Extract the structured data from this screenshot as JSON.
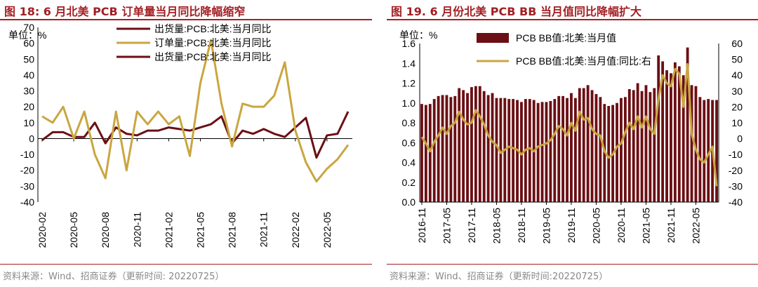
{
  "charts": [
    {
      "title": "图 18:  6 月北美 PCB 订单量当月同比降幅缩窄",
      "source": "资料来源：Wind、招商证券（更新时间: 20220725）",
      "unit_label": "单位：%",
      "colors": {
        "title": "#a31f24",
        "series_shipments": "#6b0f14",
        "series_orders": "#c9a640"
      }
    },
    {
      "title": "图 19. 6 月份北美 PCB BB 当月值同比降幅扩大",
      "source": "资料来源：Wind、招商证券（更新时间:20220725）",
      "unit_label": "单位：%",
      "colors": {
        "title": "#a31f24",
        "bars": "#6b0f14",
        "line": "#c9a640"
      }
    }
  ],
  "chart_data": [
    {
      "type": "line",
      "title": "6 月北美 PCB 订单量当月同比降幅缩窄",
      "ylabel": "%",
      "ylim": [
        -40,
        70
      ],
      "yticks": [
        -40,
        -30,
        -20,
        -10,
        0,
        10,
        20,
        30,
        40,
        50,
        60,
        70
      ],
      "xticks": [
        "2020-02",
        "2020-05",
        "2020-08",
        "2020-11",
        "2021-02",
        "2021-05",
        "2021-08",
        "2021-11",
        "2022-02",
        "2022-05"
      ],
      "legend": [
        "出货量:PCB:北美:当月同比",
        "订单量:PCB:北美:当月同比",
        "出货量:PCB:北美:当月同比"
      ],
      "series": [
        {
          "name": "出货量:PCB:北美:当月同比",
          "color": "#6b0f14",
          "values": [
            -1,
            4,
            4,
            1,
            1,
            10,
            -3,
            7,
            3,
            2,
            5,
            5,
            7,
            6,
            5,
            7,
            9,
            14,
            -3,
            5,
            3,
            6,
            3,
            1,
            7,
            13,
            -12,
            2,
            3,
            17
          ]
        },
        {
          "name": "订单量:PCB:北美:当月同比",
          "color": "#c9a640",
          "values": [
            14,
            10,
            20,
            0,
            17,
            -10,
            -25,
            17,
            -20,
            17,
            9,
            17,
            9,
            14,
            -11,
            35,
            62,
            22,
            -5,
            22,
            20,
            20,
            27,
            48,
            5,
            -15,
            -27,
            -19,
            -13,
            -4
          ]
        }
      ]
    },
    {
      "type": "bar",
      "title": "6 月份北美 PCB BB 当月值同比降幅扩大",
      "ylabel": "%",
      "ylim_left": [
        0,
        1.6
      ],
      "ylim_right": [
        -40,
        60
      ],
      "yticks_left": [
        0.0,
        0.2,
        0.4,
        0.6,
        0.8,
        1.0,
        1.2,
        1.4,
        1.6
      ],
      "yticks_right": [
        -40,
        -30,
        -20,
        -10,
        0,
        10,
        20,
        30,
        40,
        50,
        60
      ],
      "xticks": [
        "2016-11",
        "2017-05",
        "2017-11",
        "2018-05",
        "2018-11",
        "2019-05",
        "2019-11",
        "2020-05",
        "2020-11",
        "2021-05",
        "2021-11",
        "2022-05"
      ],
      "legend": [
        "PCB BB值:北美:当月值",
        "PCB BB值:北美:当月值:同比:右"
      ],
      "series": [
        {
          "name": "PCB BB值:北美:当月值",
          "axis": "left",
          "type": "bar",
          "color": "#6b0f14",
          "values": [
            0.99,
            0.98,
            0.99,
            1.04,
            1.07,
            1.08,
            1.08,
            1.06,
            1.07,
            1.15,
            1.13,
            1.1,
            1.16,
            1.17,
            1.17,
            1.12,
            1.08,
            1.1,
            1.05,
            1.05,
            1.05,
            1.04,
            1.04,
            1.03,
            1.01,
            1.04,
            1.04,
            1.03,
            1.0,
            1.01,
            1.01,
            1.02,
            1.04,
            1.07,
            1.07,
            1.05,
            1.1,
            1.05,
            1.15,
            1.15,
            1.18,
            1.13,
            1.09,
            1.06,
            0.99,
            0.97,
            0.98,
            1.0,
            1.05,
            1.06,
            1.14,
            1.13,
            1.2,
            1.12,
            1.18,
            1.11,
            1.15,
            1.48,
            1.42,
            1.33,
            1.3,
            1.41,
            1.37,
            1.28,
            1.56,
            1.18,
            1.17,
            1.06,
            1.03,
            1.04,
            1.03,
            1.03
          ]
        },
        {
          "name": "PCB BB值:北美:当月值:同比:右",
          "axis": "right",
          "type": "line",
          "color": "#c9a640",
          "values": [
            1,
            -3,
            -8,
            -2,
            2,
            7,
            3,
            8,
            10,
            17,
            12,
            9,
            10,
            18,
            14,
            9,
            2,
            -2,
            -4,
            -9,
            -7,
            -5,
            -6,
            -7,
            -10,
            -7,
            -6,
            -8,
            -5,
            -4,
            -3,
            -1,
            3,
            8,
            6,
            2,
            10,
            5,
            17,
            12,
            13,
            6,
            3,
            2,
            -8,
            -12,
            -10,
            -5,
            -3,
            4,
            10,
            6,
            14,
            7,
            14,
            6,
            3,
            25,
            40,
            35,
            33,
            44,
            41,
            20,
            47,
            3,
            -7,
            -13,
            -15,
            -10,
            -5,
            -30
          ]
        }
      ]
    }
  ]
}
